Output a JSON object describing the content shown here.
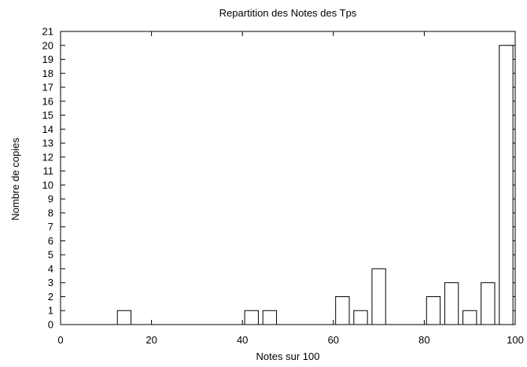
{
  "chart_data": {
    "type": "bar",
    "title": "Repartition des Notes des Tps",
    "xlabel": "Notes sur 100",
    "ylabel": "Nombre de copies",
    "xlim": [
      0,
      100
    ],
    "ylim": [
      0,
      21
    ],
    "xticks": [
      0,
      20,
      40,
      60,
      80,
      100
    ],
    "yticks": [
      0,
      1,
      2,
      3,
      4,
      5,
      6,
      7,
      8,
      9,
      10,
      11,
      12,
      13,
      14,
      15,
      16,
      17,
      18,
      19,
      20,
      21
    ],
    "bar_width": 3,
    "x": [
      14,
      42,
      46,
      62,
      66,
      70,
      82,
      86,
      90,
      94,
      98
    ],
    "values": [
      1,
      1,
      1,
      2,
      1,
      4,
      2,
      3,
      1,
      3,
      20
    ],
    "grid": false,
    "legend": "none",
    "bar_fill": "#ffffff",
    "bar_stroke": "#000000"
  }
}
